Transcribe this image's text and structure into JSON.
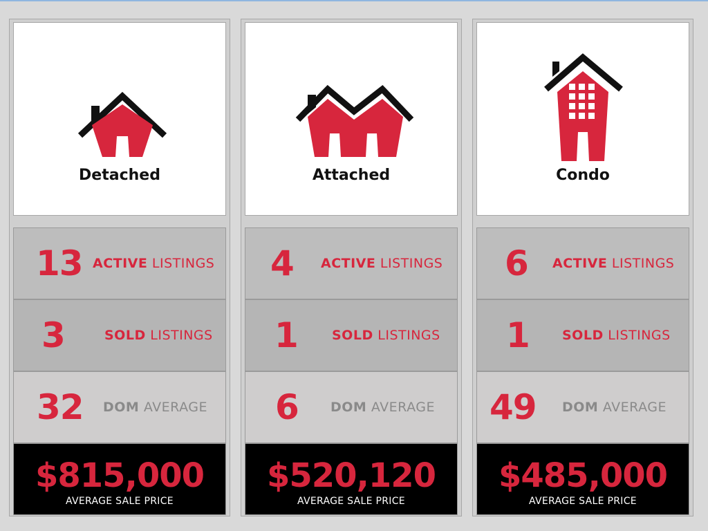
{
  "accent_color": "#d7263d",
  "cards": [
    {
      "title": "Detached",
      "icon": "detached-house-icon",
      "active": {
        "value": "13",
        "bold": "ACTIVE",
        "rest": " LISTINGS"
      },
      "sold": {
        "value": "3",
        "bold": "SOLD",
        "rest": " LISTINGS"
      },
      "dom": {
        "value": "32",
        "bold": "DOM",
        "rest": " AVERAGE"
      },
      "price": {
        "value": "$815,000",
        "caption": "AVERAGE SALE PRICE"
      }
    },
    {
      "title": "Attached",
      "icon": "attached-house-icon",
      "active": {
        "value": "4",
        "bold": "ACTIVE",
        "rest": " LISTINGS"
      },
      "sold": {
        "value": "1",
        "bold": "SOLD",
        "rest": " LISTINGS"
      },
      "dom": {
        "value": "6",
        "bold": "DOM",
        "rest": " AVERAGE"
      },
      "price": {
        "value": "$520,120",
        "caption": "AVERAGE SALE PRICE"
      }
    },
    {
      "title": "Condo",
      "icon": "condo-building-icon",
      "active": {
        "value": "6",
        "bold": "ACTIVE",
        "rest": " LISTINGS"
      },
      "sold": {
        "value": "1",
        "bold": "SOLD",
        "rest": " LISTINGS"
      },
      "dom": {
        "value": "49",
        "bold": "DOM",
        "rest": " AVERAGE"
      },
      "price": {
        "value": "$485,000",
        "caption": "AVERAGE SALE PRICE"
      }
    }
  ]
}
